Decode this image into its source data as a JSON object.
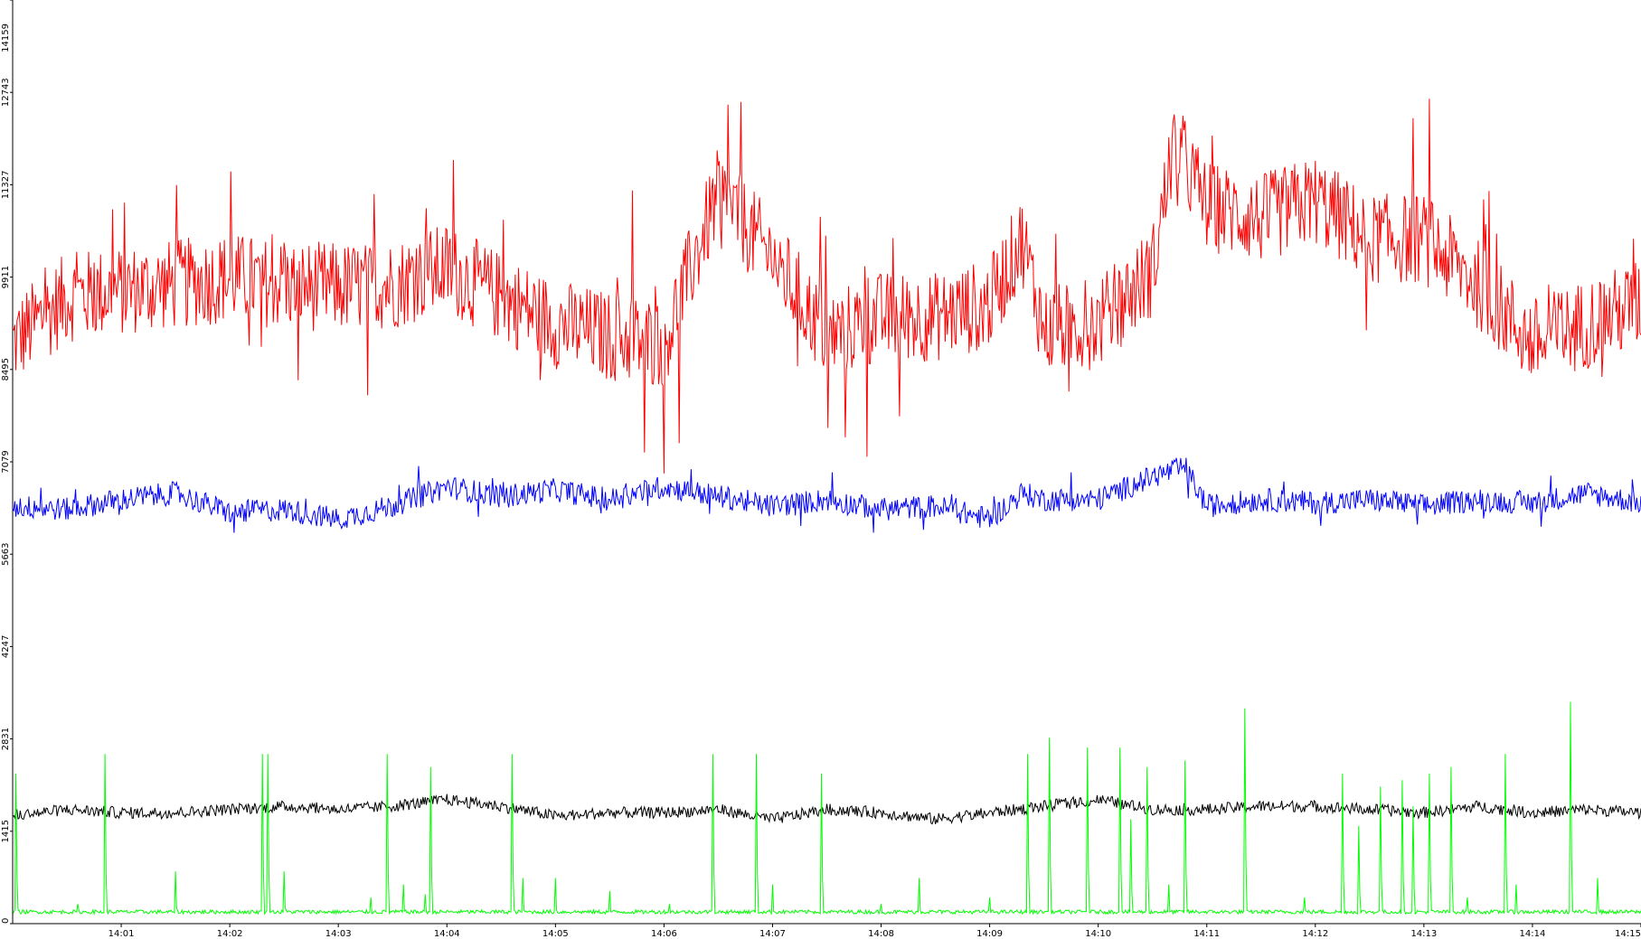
{
  "chart_data": {
    "type": "line",
    "title": "",
    "xlabel": "",
    "ylabel": "",
    "ylim": [
      0,
      14159
    ],
    "y_ticks": [
      "0",
      "1415",
      "2831",
      "4247",
      "5663",
      "7079",
      "8495",
      "9911",
      "11327",
      "12743",
      "14159"
    ],
    "x_ticks": [
      "14:01",
      "14:02",
      "14:03",
      "14:04",
      "14:05",
      "14:06",
      "14:07",
      "14:08",
      "14:09",
      "14:10",
      "14:11",
      "14:12",
      "14:13",
      "14:14",
      "14:15"
    ],
    "x_tick_minutes": [
      1,
      2,
      3,
      4,
      5,
      6,
      7,
      8,
      9,
      10,
      11,
      12,
      13,
      14,
      15
    ],
    "x_range_minutes": [
      0.0,
      15.0
    ],
    "grid": false,
    "legend": "none",
    "series": [
      {
        "color": "#ff0000",
        "points": [
          [
            0.0,
            8900
          ],
          [
            0.5,
            9600
          ],
          [
            1.0,
            9700
          ],
          [
            1.5,
            9800
          ],
          [
            2.0,
            9900
          ],
          [
            2.5,
            9800
          ],
          [
            3.0,
            9750
          ],
          [
            3.5,
            9800
          ],
          [
            4.0,
            10050
          ],
          [
            4.5,
            9600
          ],
          [
            5.0,
            9200
          ],
          [
            5.5,
            9000
          ],
          [
            6.0,
            8900
          ],
          [
            6.5,
            11200
          ],
          [
            7.0,
            10200
          ],
          [
            7.5,
            9000
          ],
          [
            8.0,
            9300
          ],
          [
            8.5,
            9300
          ],
          [
            9.0,
            9500
          ],
          [
            9.3,
            10500
          ],
          [
            9.5,
            9100
          ],
          [
            10.0,
            9200
          ],
          [
            10.5,
            10000
          ],
          [
            10.7,
            12000
          ],
          [
            11.0,
            11000
          ],
          [
            11.5,
            10800
          ],
          [
            12.0,
            11100
          ],
          [
            12.5,
            10500
          ],
          [
            13.0,
            10500
          ],
          [
            13.5,
            9800
          ],
          [
            14.0,
            8900
          ],
          [
            14.5,
            9200
          ],
          [
            15.0,
            9500
          ]
        ]
      },
      {
        "color": "#0000ff",
        "points": [
          [
            0.0,
            6400
          ],
          [
            0.5,
            6350
          ],
          [
            1.0,
            6500
          ],
          [
            1.5,
            6600
          ],
          [
            2.0,
            6300
          ],
          [
            2.5,
            6350
          ],
          [
            3.0,
            6200
          ],
          [
            3.5,
            6400
          ],
          [
            4.0,
            6700
          ],
          [
            4.5,
            6550
          ],
          [
            5.0,
            6650
          ],
          [
            5.5,
            6500
          ],
          [
            6.0,
            6700
          ],
          [
            6.5,
            6550
          ],
          [
            7.0,
            6400
          ],
          [
            7.5,
            6500
          ],
          [
            8.0,
            6350
          ],
          [
            8.5,
            6400
          ],
          [
            9.0,
            6200
          ],
          [
            9.3,
            6600
          ],
          [
            9.5,
            6500
          ],
          [
            10.0,
            6500
          ],
          [
            10.5,
            6850
          ],
          [
            10.8,
            7000
          ],
          [
            11.0,
            6400
          ],
          [
            11.5,
            6500
          ],
          [
            12.0,
            6450
          ],
          [
            12.5,
            6500
          ],
          [
            13.0,
            6400
          ],
          [
            13.5,
            6500
          ],
          [
            14.0,
            6450
          ],
          [
            14.5,
            6600
          ],
          [
            15.0,
            6450
          ]
        ]
      },
      {
        "color": "#000000",
        "points": [
          [
            0.0,
            1650
          ],
          [
            0.5,
            1750
          ],
          [
            1.0,
            1700
          ],
          [
            1.5,
            1700
          ],
          [
            2.0,
            1750
          ],
          [
            2.5,
            1800
          ],
          [
            3.0,
            1750
          ],
          [
            3.5,
            1800
          ],
          [
            4.0,
            1900
          ],
          [
            4.5,
            1800
          ],
          [
            5.0,
            1650
          ],
          [
            5.5,
            1700
          ],
          [
            6.0,
            1700
          ],
          [
            6.5,
            1750
          ],
          [
            7.0,
            1600
          ],
          [
            7.5,
            1750
          ],
          [
            8.0,
            1700
          ],
          [
            8.5,
            1600
          ],
          [
            9.0,
            1700
          ],
          [
            9.5,
            1800
          ],
          [
            10.0,
            1900
          ],
          [
            10.5,
            1750
          ],
          [
            11.0,
            1750
          ],
          [
            11.5,
            1800
          ],
          [
            12.0,
            1800
          ],
          [
            12.5,
            1750
          ],
          [
            13.0,
            1700
          ],
          [
            13.5,
            1800
          ],
          [
            14.0,
            1700
          ],
          [
            14.5,
            1750
          ],
          [
            15.0,
            1700
          ]
        ]
      },
      {
        "color": "#00ff00",
        "baseline": 180,
        "spikes": [
          [
            0.03,
            2300
          ],
          [
            0.6,
            300
          ],
          [
            0.85,
            2600
          ],
          [
            1.5,
            800
          ],
          [
            2.3,
            2600
          ],
          [
            2.35,
            2600
          ],
          [
            2.5,
            800
          ],
          [
            3.05,
            200
          ],
          [
            3.3,
            400
          ],
          [
            3.45,
            2600
          ],
          [
            3.6,
            600
          ],
          [
            3.8,
            450
          ],
          [
            3.85,
            2400
          ],
          [
            4.6,
            2600
          ],
          [
            4.7,
            700
          ],
          [
            5.0,
            700
          ],
          [
            5.3,
            200
          ],
          [
            5.5,
            500
          ],
          [
            6.05,
            300
          ],
          [
            6.45,
            2600
          ],
          [
            6.85,
            2600
          ],
          [
            7.0,
            600
          ],
          [
            7.45,
            2300
          ],
          [
            8.0,
            300
          ],
          [
            8.35,
            700
          ],
          [
            9.0,
            400
          ],
          [
            9.35,
            2600
          ],
          [
            9.55,
            2850
          ],
          [
            9.9,
            2700
          ],
          [
            10.2,
            2700
          ],
          [
            10.3,
            1600
          ],
          [
            10.45,
            2400
          ],
          [
            10.65,
            600
          ],
          [
            10.8,
            2500
          ],
          [
            11.35,
            3300
          ],
          [
            11.9,
            400
          ],
          [
            12.25,
            2300
          ],
          [
            12.4,
            1500
          ],
          [
            12.6,
            2100
          ],
          [
            12.8,
            2200
          ],
          [
            12.9,
            1800
          ],
          [
            13.05,
            2300
          ],
          [
            13.25,
            2400
          ],
          [
            13.4,
            400
          ],
          [
            13.75,
            2600
          ],
          [
            13.85,
            600
          ],
          [
            14.35,
            3400
          ],
          [
            14.6,
            700
          ]
        ]
      }
    ]
  }
}
